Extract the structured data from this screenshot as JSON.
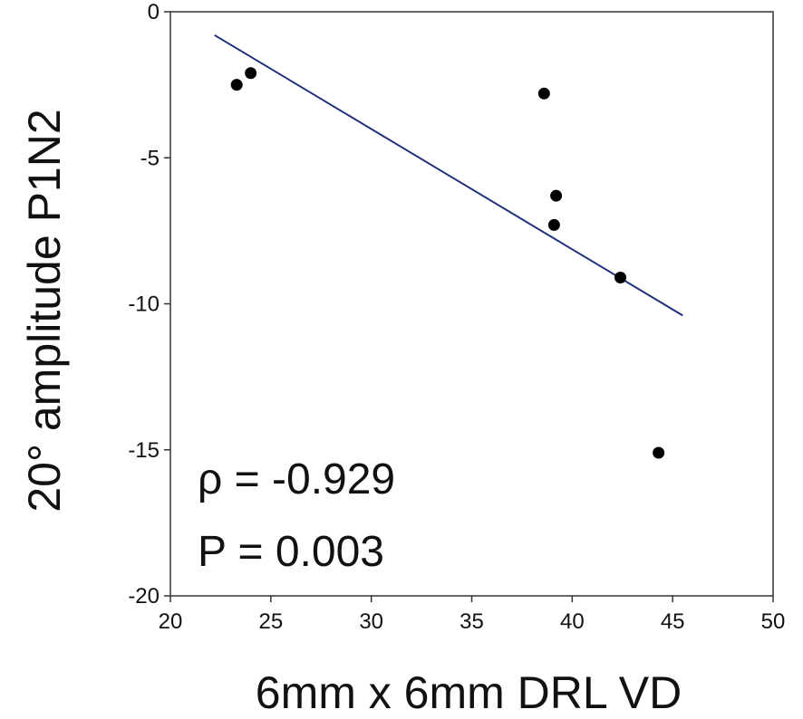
{
  "chart_data": {
    "type": "scatter",
    "xlabel": "6mm x 6mm DRL VD",
    "ylabel": "20°   amplitude P1N2",
    "xlim": [
      20,
      50
    ],
    "ylim": [
      -20,
      0
    ],
    "xticks": [
      20,
      25,
      30,
      35,
      40,
      45,
      50
    ],
    "yticks": [
      0,
      -5,
      -10,
      -15,
      -20
    ],
    "grid": false,
    "points": [
      {
        "x": 23.3,
        "y": -2.5
      },
      {
        "x": 24.0,
        "y": -2.1
      },
      {
        "x": 38.6,
        "y": -2.8
      },
      {
        "x": 39.2,
        "y": -6.3
      },
      {
        "x": 39.1,
        "y": -7.3
      },
      {
        "x": 42.4,
        "y": -9.1
      },
      {
        "x": 44.3,
        "y": -15.1
      }
    ],
    "fit_line": {
      "x": [
        22.2,
        45.5
      ],
      "y": [
        -0.8,
        -10.4
      ],
      "color": "#1f2f7a"
    },
    "annotations": [
      "ρ = -0.929",
      "P = 0.003"
    ]
  }
}
